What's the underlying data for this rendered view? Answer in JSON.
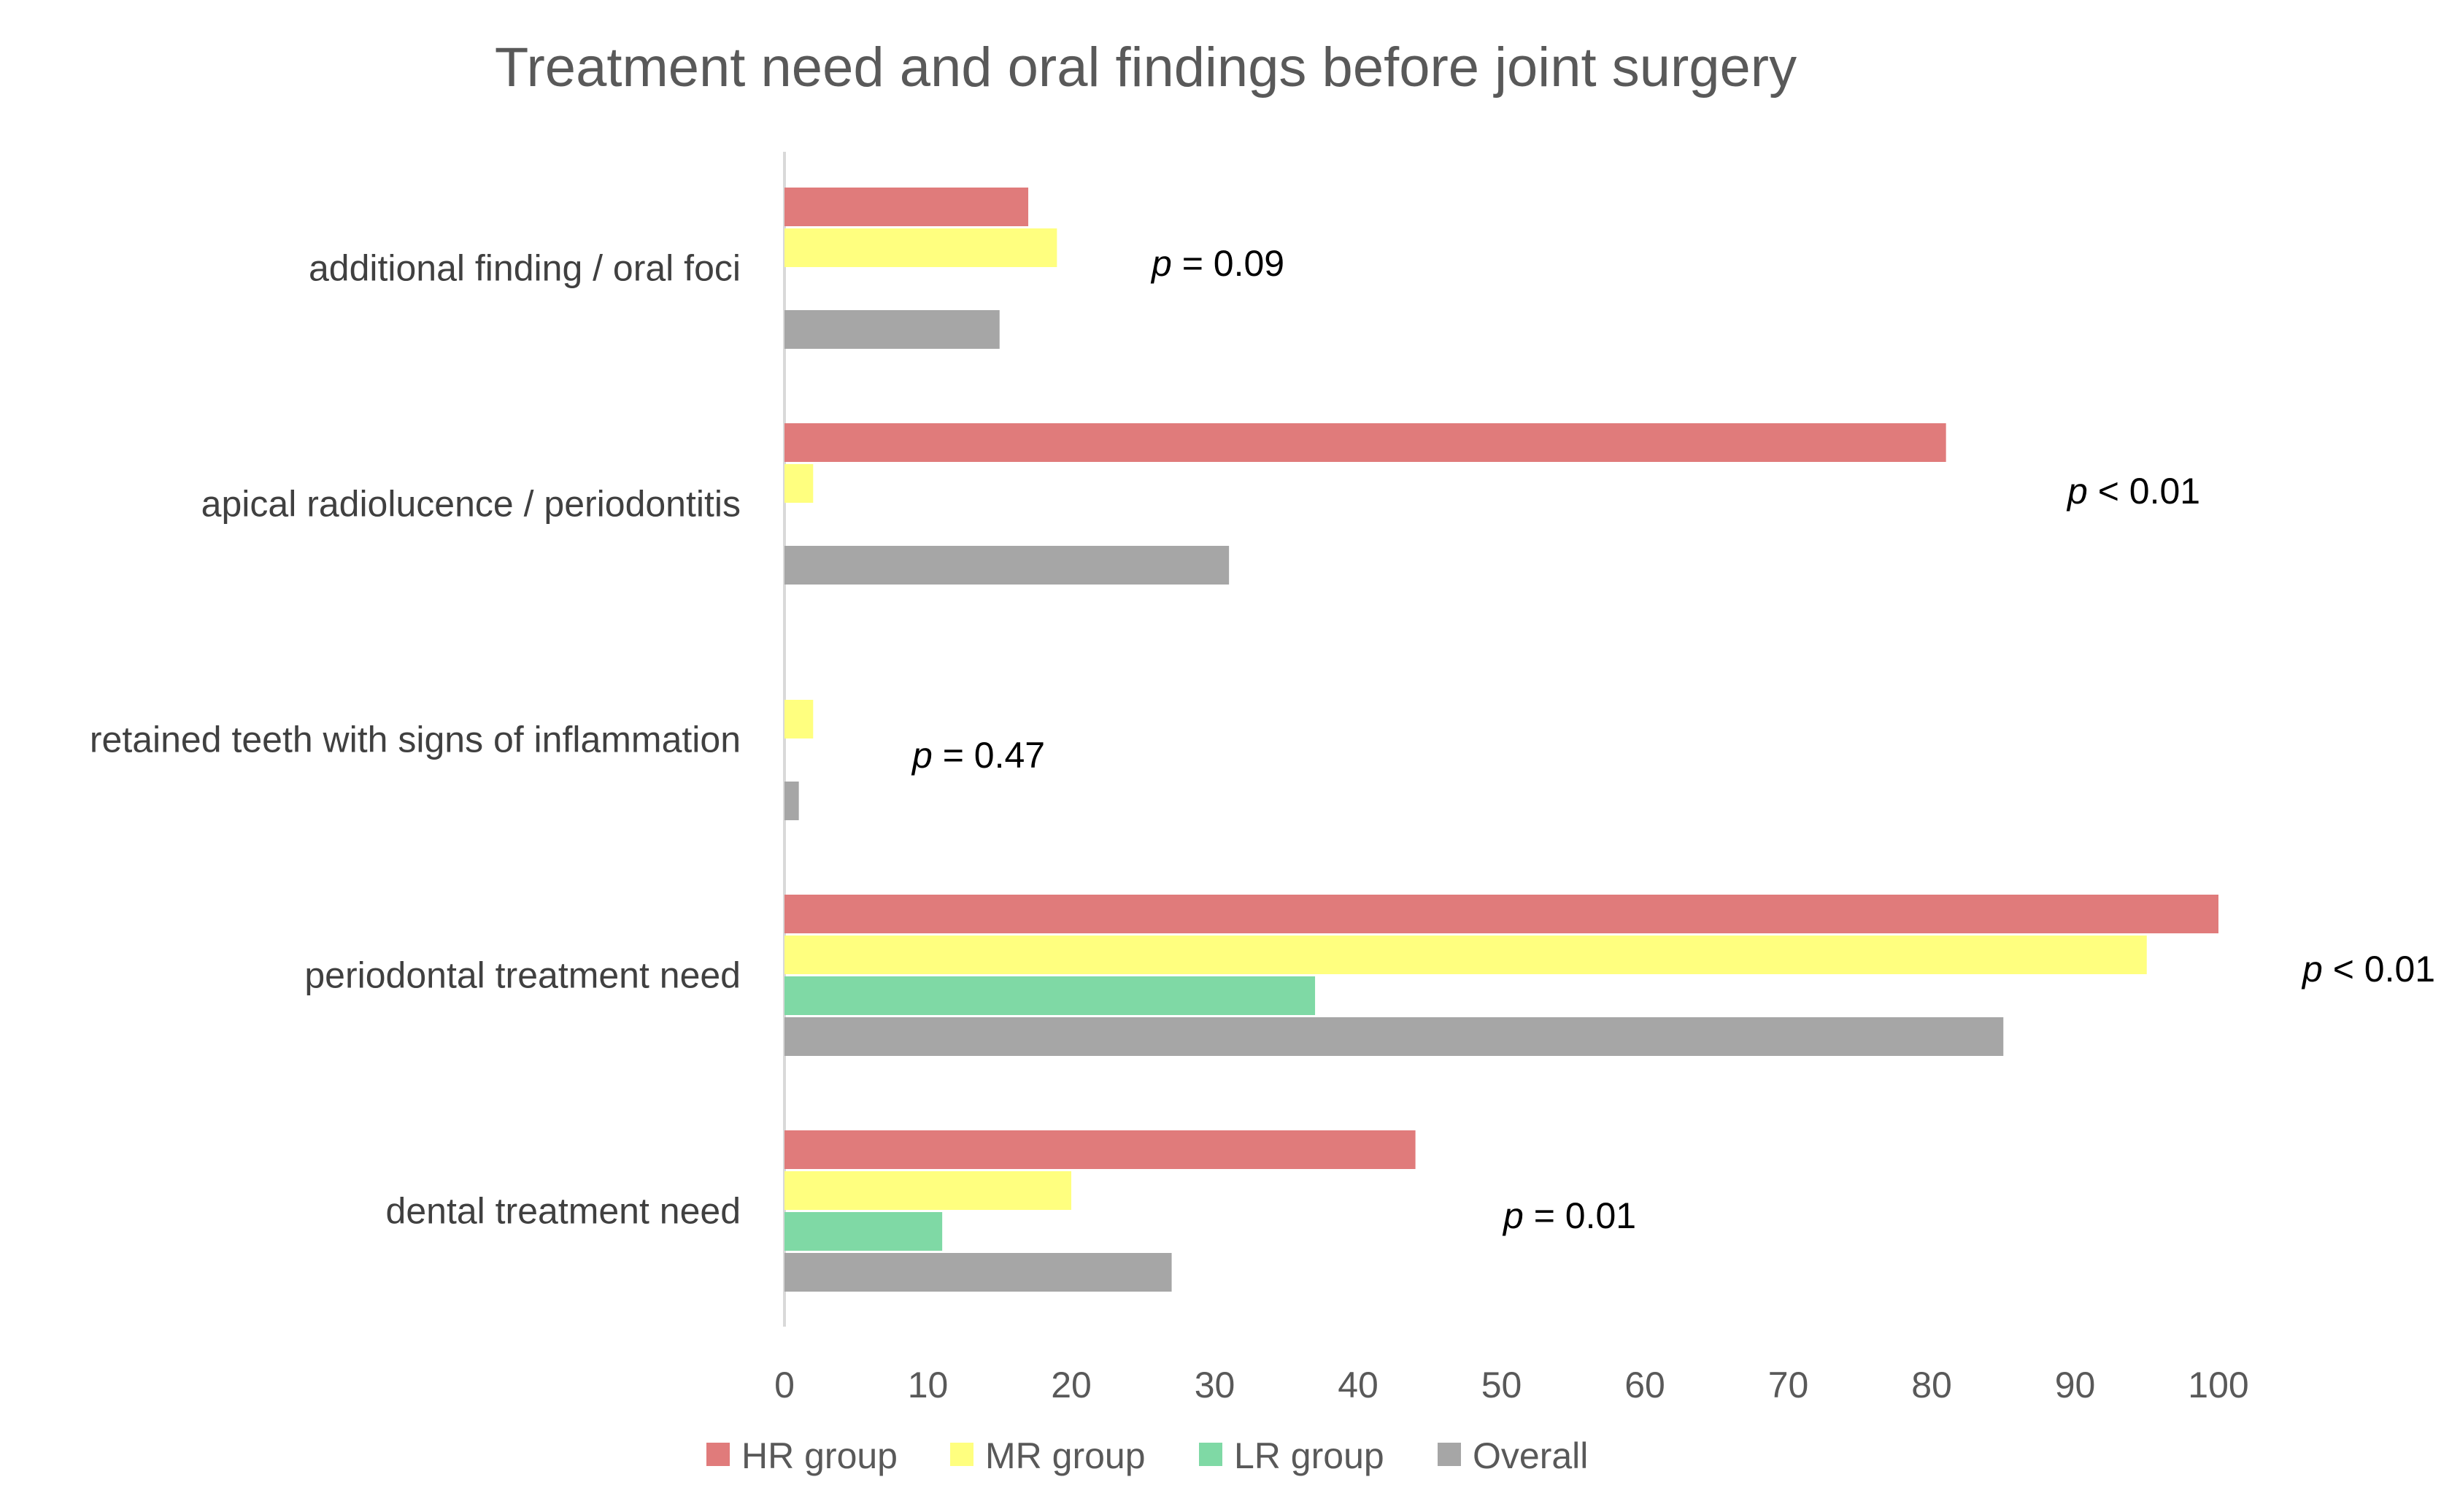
{
  "chart_data": {
    "type": "bar",
    "orientation": "horizontal",
    "title": "Treatment need and oral findings before joint surgery",
    "xlabel": "",
    "ylabel": "",
    "xlim": [
      0,
      100
    ],
    "x_ticks": [
      0,
      10,
      20,
      30,
      40,
      50,
      60,
      70,
      80,
      90,
      100
    ],
    "grid": false,
    "legend_position": "bottom",
    "categories": [
      "additional finding / oral foci",
      "apical radiolucence / periodontitis",
      "retained teeth with signs of inflammation",
      "periodontal treatment need",
      "dental treatment need"
    ],
    "series": [
      {
        "name": "HR group",
        "color": "#E07B7B",
        "values": [
          17,
          81,
          0,
          100,
          44
        ]
      },
      {
        "name": "MR group",
        "color": "#FFFF7F",
        "values": [
          19,
          2,
          2,
          95,
          20
        ]
      },
      {
        "name": "LR group",
        "color": "#7FD9A5",
        "values": [
          0,
          0,
          0,
          37,
          11
        ]
      },
      {
        "name": "Overall",
        "color": "#A6A6A6",
        "values": [
          15,
          31,
          1,
          85,
          27
        ]
      }
    ],
    "annotations": [
      {
        "category": "additional finding / oral foci",
        "var": "p",
        "text": " = 0.09"
      },
      {
        "category": "apical radiolucence / periodontitis",
        "var": "p",
        "text": " < 0.01"
      },
      {
        "category": "retained teeth with signs of inflammation",
        "var": "p",
        "text": " = 0.47"
      },
      {
        "category": "periodontal treatment need",
        "var": "p",
        "text": " < 0.01"
      },
      {
        "category": "dental treatment need",
        "var": "p",
        "text": " = 0.01"
      }
    ]
  }
}
